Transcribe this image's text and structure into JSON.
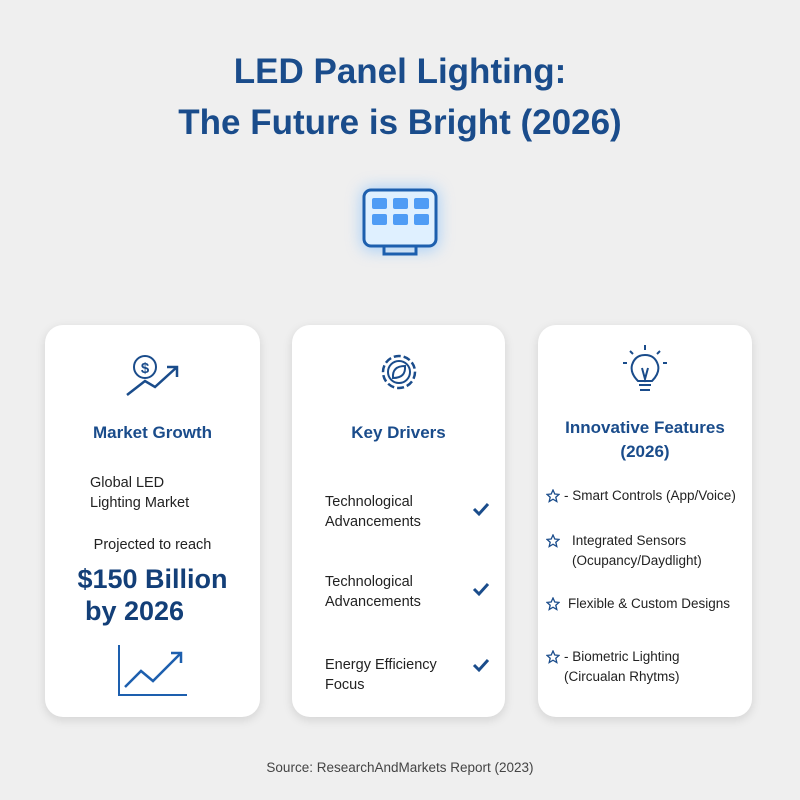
{
  "header": {
    "title": [
      "LED Panel Lighting:",
      "The Future is Bright (2026)"
    ]
  },
  "cards": [
    {
      "heading": "Market Growth",
      "text": [
        "Global LED",
        "Lighting Market"
      ],
      "lead": "Projected to reach",
      "highlight": [
        "$150 Billion",
        "by 2026"
      ]
    },
    {
      "heading": "Key Drivers",
      "items": [
        "Technological Advancements",
        "Technological Advancements",
        "Energy Efficiency Focus"
      ]
    },
    {
      "heading": "Innovative Features (2026)",
      "items": [
        "- Smart Controls (App/Voice)",
        "Integrated Sensors (Ocupancy/Daydlight)",
        "Flexible & Custom Designs",
        "- Biometric Lighting (Circualan Rhytms)"
      ]
    }
  ],
  "footer": {
    "source": "Source: ResearchAndMarkets Report (2023)"
  }
}
